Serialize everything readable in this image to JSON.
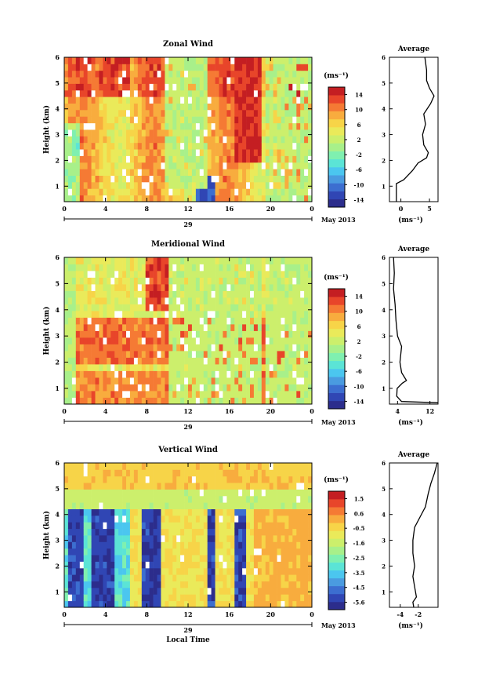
{
  "chart_data": [
    {
      "type": "heatmap",
      "title": "Zonal Wind",
      "ylabel": "Height (km)",
      "xlabel": "",
      "ylim": [
        0.4,
        6.0
      ],
      "xlim": [
        0,
        24
      ],
      "x_ticks": [
        "0",
        "4",
        "8",
        "12",
        "16",
        "20",
        "0"
      ],
      "y_ticks": [
        "1",
        "2",
        "3",
        "4",
        "5",
        "6"
      ],
      "date_label": "29",
      "month_label": "May 2013",
      "colorbar": {
        "unit": "(ms⁻¹)",
        "ticks": [
          "14",
          "10",
          "6",
          "2",
          "-2",
          "-6",
          "-10",
          "-14"
        ],
        "range": [
          -16,
          16
        ]
      },
      "profile": {
        "title": "Average",
        "xlabel": "(ms⁻¹)",
        "x_ticks": [
          "0",
          "5"
        ],
        "xlim": [
          -2,
          6.5
        ],
        "points": [
          [
            -0.8,
            0.4
          ],
          [
            -0.8,
            1.1
          ],
          [
            0.5,
            1.25
          ],
          [
            2.0,
            1.6
          ],
          [
            3.0,
            1.9
          ],
          [
            4.5,
            2.1
          ],
          [
            4.8,
            2.3
          ],
          [
            4.0,
            2.6
          ],
          [
            3.8,
            3.0
          ],
          [
            4.3,
            3.4
          ],
          [
            4.0,
            3.8
          ],
          [
            5.2,
            4.2
          ],
          [
            5.8,
            4.5
          ],
          [
            5.0,
            4.8
          ],
          [
            4.5,
            5.1
          ],
          [
            4.5,
            5.5
          ],
          [
            4.2,
            6.0
          ]
        ]
      }
    },
    {
      "type": "heatmap",
      "title": "Meridional Wind",
      "ylabel": "Height (km)",
      "xlabel": "",
      "ylim": [
        0.4,
        6.0
      ],
      "xlim": [
        0,
        24
      ],
      "x_ticks": [
        "0",
        "4",
        "8",
        "12",
        "16",
        "20",
        "0"
      ],
      "y_ticks": [
        "1",
        "2",
        "3",
        "4",
        "5",
        "6"
      ],
      "date_label": "29",
      "month_label": "May 2013",
      "colorbar": {
        "unit": "(ms⁻¹)",
        "ticks": [
          "14",
          "10",
          "6",
          "2",
          "-2",
          "-6",
          "-10",
          "-14"
        ],
        "range": [
          -16,
          16
        ]
      },
      "profile": {
        "title": "Average",
        "xlabel": "(ms⁻¹)",
        "x_ticks": [
          "4",
          "12"
        ],
        "xlim": [
          2,
          14
        ],
        "points": [
          [
            14,
            0.45
          ],
          [
            5,
            0.5
          ],
          [
            3.8,
            0.7
          ],
          [
            3.9,
            1.0
          ],
          [
            5.2,
            1.2
          ],
          [
            6.2,
            1.3
          ],
          [
            5.0,
            1.6
          ],
          [
            4.6,
            2.0
          ],
          [
            5.0,
            2.6
          ],
          [
            4.0,
            3.0
          ],
          [
            3.6,
            3.6
          ],
          [
            3.4,
            4.2
          ],
          [
            3.0,
            4.8
          ],
          [
            3.2,
            5.4
          ],
          [
            3.0,
            6.0
          ]
        ]
      }
    },
    {
      "type": "heatmap",
      "title": "Vertical Wind",
      "ylabel": "Height (km)",
      "xlabel": "Local Time",
      "ylim": [
        0.4,
        6.0
      ],
      "xlim": [
        0,
        24
      ],
      "x_ticks": [
        "0",
        "4",
        "8",
        "12",
        "16",
        "20",
        "0"
      ],
      "y_ticks": [
        "1",
        "2",
        "3",
        "4",
        "5",
        "6"
      ],
      "date_label": "29",
      "month_label": "May 2013",
      "colorbar": {
        "unit": "(ms⁻¹)",
        "ticks": [
          "1.5",
          "0.6",
          "-0.5",
          "-1.6",
          "-2.5",
          "-3.5",
          "-4.5",
          "-5.6"
        ],
        "range": [
          -6.0,
          2.0
        ]
      },
      "profile": {
        "title": "Average",
        "xlabel": "(ms⁻¹)",
        "x_ticks": [
          "-4",
          "-2"
        ],
        "xlim": [
          -5.2,
          0.2
        ],
        "points": [
          [
            -2.5,
            0.4
          ],
          [
            -2.6,
            0.6
          ],
          [
            -2.2,
            0.8
          ],
          [
            -2.4,
            1.2
          ],
          [
            -2.6,
            1.6
          ],
          [
            -2.4,
            2.0
          ],
          [
            -2.6,
            2.5
          ],
          [
            -2.6,
            3.0
          ],
          [
            -2.4,
            3.5
          ],
          [
            -1.8,
            3.9
          ],
          [
            -1.2,
            4.3
          ],
          [
            -0.9,
            4.8
          ],
          [
            -0.6,
            5.2
          ],
          [
            -0.2,
            5.6
          ],
          [
            0.1,
            6.0
          ]
        ]
      }
    }
  ]
}
